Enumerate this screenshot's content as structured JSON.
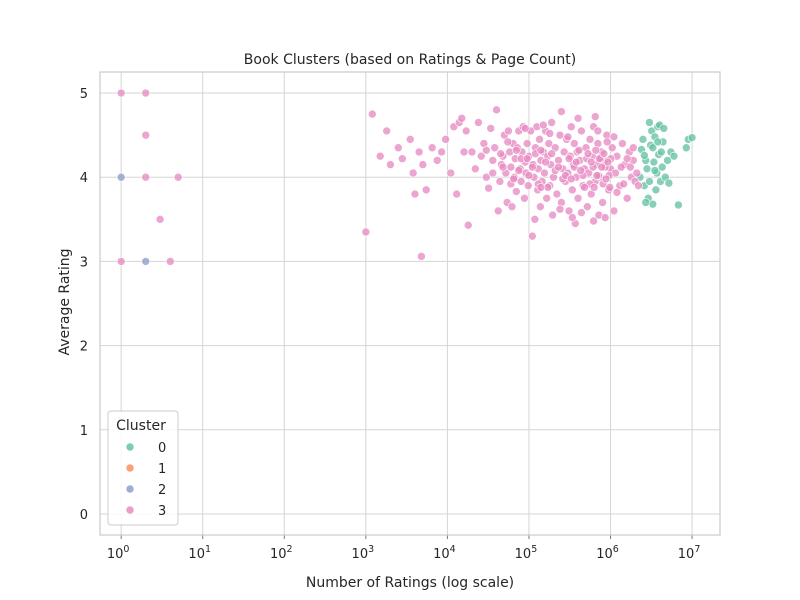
{
  "chart_data": {
    "type": "scatter",
    "title": "Book Clusters (based on Ratings & Page Count)",
    "xlabel": "Number of Ratings (log scale)",
    "ylabel": "Average Rating",
    "x_scale": "log",
    "xlim": [
      0.55,
      22000000
    ],
    "ylim": [
      -0.25,
      5.25
    ],
    "x_ticks": [
      {
        "value": 1,
        "base": "10",
        "exp": "0"
      },
      {
        "value": 10,
        "base": "10",
        "exp": "1"
      },
      {
        "value": 100,
        "base": "10",
        "exp": "2"
      },
      {
        "value": 1000,
        "base": "10",
        "exp": "3"
      },
      {
        "value": 10000,
        "base": "10",
        "exp": "4"
      },
      {
        "value": 100000,
        "base": "10",
        "exp": "5"
      },
      {
        "value": 1000000,
        "base": "10",
        "exp": "6"
      },
      {
        "value": 10000000,
        "base": "10",
        "exp": "7"
      }
    ],
    "y_ticks": [
      {
        "value": 0,
        "label": "0"
      },
      {
        "value": 1,
        "label": "1"
      },
      {
        "value": 2,
        "label": "2"
      },
      {
        "value": 3,
        "label": "3"
      },
      {
        "value": 4,
        "label": "4"
      },
      {
        "value": 5,
        "label": "5"
      }
    ],
    "grid": true,
    "legend": {
      "title": "Cluster",
      "placement": "lower-left"
    },
    "series": [
      {
        "name": "0",
        "color": "#66c2a5",
        "points": [
          [
            2300000,
            4.0
          ],
          [
            2400000,
            4.33
          ],
          [
            2500000,
            4.45
          ],
          [
            2600000,
            3.9
          ],
          [
            2700000,
            4.2
          ],
          [
            2800000,
            4.1
          ],
          [
            2900000,
            3.75
          ],
          [
            3000000,
            4.65
          ],
          [
            3000000,
            3.95
          ],
          [
            3100000,
            4.38
          ],
          [
            3200000,
            4.55
          ],
          [
            3300000,
            3.68
          ],
          [
            3400000,
            4.18
          ],
          [
            3500000,
            4.48
          ],
          [
            3600000,
            3.85
          ],
          [
            3700000,
            4.05
          ],
          [
            3800000,
            4.6
          ],
          [
            3900000,
            4.27
          ],
          [
            4000000,
            4.62
          ],
          [
            4100000,
            3.95
          ],
          [
            4200000,
            4.3
          ],
          [
            4300000,
            4.12
          ],
          [
            4400000,
            4.42
          ],
          [
            4500000,
            4.58
          ],
          [
            4700000,
            4.0
          ],
          [
            5000000,
            4.2
          ],
          [
            5200000,
            3.93
          ],
          [
            5500000,
            4.3
          ],
          [
            6000000,
            4.25
          ],
          [
            6800000,
            3.67
          ],
          [
            8500000,
            4.35
          ],
          [
            9000000,
            4.45
          ],
          [
            10000000,
            4.47
          ],
          [
            3500000,
            4.08
          ],
          [
            2700000,
            3.7
          ],
          [
            3800000,
            4.42
          ],
          [
            2600000,
            4.26
          ],
          [
            3300000,
            4.35
          ]
        ]
      },
      {
        "name": "1",
        "color": "#fc8d62",
        "points": []
      },
      {
        "name": "2",
        "color": "#8da0cb",
        "points": [
          [
            1,
            4.0
          ],
          [
            2,
            3.0
          ]
        ]
      },
      {
        "name": "3",
        "color": "#e78ac3",
        "points": [
          [
            1,
            5.0
          ],
          [
            1,
            3.0
          ],
          [
            2,
            5.0
          ],
          [
            2,
            4.5
          ],
          [
            2,
            4.0
          ],
          [
            3,
            3.5
          ],
          [
            4,
            3.0
          ],
          [
            5,
            4.0
          ],
          [
            1000,
            3.35
          ],
          [
            1200,
            4.75
          ],
          [
            1500,
            4.25
          ],
          [
            1800,
            4.55
          ],
          [
            2000,
            4.15
          ],
          [
            2500,
            4.35
          ],
          [
            2800,
            4.22
          ],
          [
            3500,
            4.45
          ],
          [
            3800,
            4.05
          ],
          [
            4000,
            3.8
          ],
          [
            4500,
            4.3
          ],
          [
            4800,
            3.06
          ],
          [
            5000,
            4.15
          ],
          [
            5500,
            3.85
          ],
          [
            6500,
            4.35
          ],
          [
            7500,
            4.2
          ],
          [
            8500,
            4.3
          ],
          [
            9500,
            4.45
          ],
          [
            11000,
            4.05
          ],
          [
            12000,
            4.6
          ],
          [
            13000,
            3.8
          ],
          [
            14000,
            4.65
          ],
          [
            15000,
            4.7
          ],
          [
            16000,
            4.3
          ],
          [
            17000,
            4.55
          ],
          [
            18000,
            3.43
          ],
          [
            20000,
            4.3
          ],
          [
            22000,
            4.1
          ],
          [
            24000,
            4.65
          ],
          [
            26000,
            4.25
          ],
          [
            28000,
            4.4
          ],
          [
            30000,
            4.0
          ],
          [
            32000,
            3.87
          ],
          [
            34000,
            4.58
          ],
          [
            36000,
            4.2
          ],
          [
            38000,
            4.35
          ],
          [
            40000,
            4.8
          ],
          [
            42000,
            3.6
          ],
          [
            44000,
            3.95
          ],
          [
            46000,
            4.15
          ],
          [
            48000,
            4.25
          ],
          [
            50000,
            4.5
          ],
          [
            52000,
            4.05
          ],
          [
            54000,
            3.7
          ],
          [
            56000,
            4.55
          ],
          [
            58000,
            4.3
          ],
          [
            60000,
            4.12
          ],
          [
            62000,
            3.65
          ],
          [
            64000,
            4.4
          ],
          [
            66000,
            4.0
          ],
          [
            68000,
            4.22
          ],
          [
            70000,
            3.83
          ],
          [
            72000,
            4.35
          ],
          [
            75000,
            4.55
          ],
          [
            78000,
            4.1
          ],
          [
            80000,
            3.95
          ],
          [
            82000,
            4.3
          ],
          [
            85000,
            4.6
          ],
          [
            88000,
            3.75
          ],
          [
            90000,
            4.18
          ],
          [
            92000,
            4.05
          ],
          [
            95000,
            4.4
          ],
          [
            98000,
            3.9
          ],
          [
            100000,
            4.25
          ],
          [
            105000,
            4.55
          ],
          [
            110000,
            3.3
          ],
          [
            112000,
            4.15
          ],
          [
            115000,
            4.0
          ],
          [
            118000,
            3.5
          ],
          [
            120000,
            4.35
          ],
          [
            125000,
            4.6
          ],
          [
            128000,
            3.85
          ],
          [
            130000,
            4.1
          ],
          [
            135000,
            4.45
          ],
          [
            138000,
            3.65
          ],
          [
            140000,
            4.2
          ],
          [
            145000,
            3.95
          ],
          [
            150000,
            4.3
          ],
          [
            155000,
            4.05
          ],
          [
            160000,
            4.55
          ],
          [
            165000,
            3.75
          ],
          [
            170000,
            4.25
          ],
          [
            175000,
            4.4
          ],
          [
            180000,
            3.9
          ],
          [
            185000,
            4.15
          ],
          [
            190000,
            4.65
          ],
          [
            195000,
            3.55
          ],
          [
            200000,
            4.0
          ],
          [
            210000,
            4.35
          ],
          [
            220000,
            3.8
          ],
          [
            230000,
            4.2
          ],
          [
            240000,
            4.5
          ],
          [
            250000,
            3.7
          ],
          [
            260000,
            4.1
          ],
          [
            270000,
            4.3
          ],
          [
            280000,
            3.95
          ],
          [
            290000,
            4.45
          ],
          [
            300000,
            4.05
          ],
          [
            310000,
            3.6
          ],
          [
            320000,
            4.25
          ],
          [
            330000,
            4.6
          ],
          [
            340000,
            3.85
          ],
          [
            350000,
            4.15
          ],
          [
            360000,
            4.4
          ],
          [
            370000,
            3.45
          ],
          [
            380000,
            4.0
          ],
          [
            390000,
            4.3
          ],
          [
            400000,
            3.75
          ],
          [
            420000,
            4.2
          ],
          [
            440000,
            4.55
          ],
          [
            460000,
            3.9
          ],
          [
            480000,
            4.1
          ],
          [
            500000,
            4.35
          ],
          [
            520000,
            3.65
          ],
          [
            540000,
            4.05
          ],
          [
            560000,
            4.45
          ],
          [
            580000,
            3.8
          ],
          [
            600000,
            4.25
          ],
          [
            620000,
            4.6
          ],
          [
            650000,
            3.95
          ],
          [
            680000,
            4.15
          ],
          [
            700000,
            4.4
          ],
          [
            720000,
            3.55
          ],
          [
            750000,
            4.0
          ],
          [
            780000,
            4.3
          ],
          [
            800000,
            3.7
          ],
          [
            850000,
            4.2
          ],
          [
            900000,
            4.5
          ],
          [
            950000,
            3.85
          ],
          [
            1000000,
            4.1
          ],
          [
            1050000,
            4.35
          ],
          [
            1100000,
            3.6
          ],
          [
            1150000,
            4.05
          ],
          [
            1200000,
            4.25
          ],
          [
            1300000,
            3.9
          ],
          [
            1400000,
            4.4
          ],
          [
            1500000,
            4.15
          ],
          [
            1600000,
            3.75
          ],
          [
            1700000,
            4.3
          ],
          [
            1800000,
            4.0
          ],
          [
            1900000,
            4.2
          ],
          [
            2000000,
            3.95
          ],
          [
            650000,
            4.72
          ],
          [
            250000,
            4.78
          ],
          [
            150000,
            4.62
          ],
          [
            90000,
            4.58
          ],
          [
            400000,
            4.7
          ],
          [
            1100000,
            4.48
          ],
          [
            55000,
            4.42
          ],
          [
            180000,
            4.52
          ],
          [
            300000,
            4.48
          ],
          [
            700000,
            4.55
          ],
          [
            120000,
            4.28
          ],
          [
            160000,
            4.18
          ],
          [
            210000,
            4.08
          ],
          [
            260000,
            3.98
          ],
          [
            310000,
            4.22
          ],
          [
            360000,
            4.12
          ],
          [
            410000,
            4.32
          ],
          [
            460000,
            4.02
          ],
          [
            510000,
            4.22
          ],
          [
            560000,
            3.92
          ],
          [
            610000,
            4.12
          ],
          [
            660000,
            4.32
          ],
          [
            710000,
            4.02
          ],
          [
            760000,
            4.22
          ],
          [
            810000,
            3.92
          ],
          [
            860000,
            4.12
          ],
          [
            910000,
            4.42
          ],
          [
            960000,
            4.02
          ],
          [
            1010000,
            4.22
          ],
          [
            1200000,
            3.82
          ],
          [
            1350000,
            4.12
          ],
          [
            1450000,
            3.92
          ],
          [
            1600000,
            4.22
          ],
          [
            1750000,
            4.12
          ],
          [
            1900000,
            4.35
          ],
          [
            2100000,
            4.05
          ],
          [
            2200000,
            3.9
          ],
          [
            80000,
            4.22
          ],
          [
            70000,
            4.32
          ],
          [
            60000,
            3.92
          ],
          [
            100000,
            4.02
          ],
          [
            130000,
            3.92
          ],
          [
            140000,
            4.32
          ],
          [
            170000,
            3.88
          ],
          [
            190000,
            4.28
          ],
          [
            230000,
            4.12
          ],
          [
            280000,
            4.02
          ],
          [
            330000,
            3.98
          ],
          [
            380000,
            4.18
          ],
          [
            430000,
            4.08
          ],
          [
            480000,
            3.88
          ],
          [
            530000,
            4.28
          ],
          [
            580000,
            4.18
          ],
          [
            630000,
            3.88
          ],
          [
            680000,
            4.02
          ],
          [
            730000,
            4.22
          ],
          [
            780000,
            4.12
          ],
          [
            830000,
            4.28
          ],
          [
            880000,
            3.98
          ],
          [
            930000,
            4.18
          ],
          [
            980000,
            3.88
          ],
          [
            240000,
            3.62
          ],
          [
            440000,
            3.58
          ],
          [
            620000,
            3.48
          ],
          [
            860000,
            3.52
          ],
          [
            340000,
            3.52
          ],
          [
            140000,
            3.88
          ],
          [
            110000,
            4.12
          ],
          [
            95000,
            4.22
          ],
          [
            75000,
            4.08
          ],
          [
            65000,
            3.98
          ],
          [
            48000,
            4.12
          ],
          [
            45000,
            4.28
          ],
          [
            36000,
            4.05
          ],
          [
            30000,
            4.32
          ]
        ]
      }
    ]
  }
}
